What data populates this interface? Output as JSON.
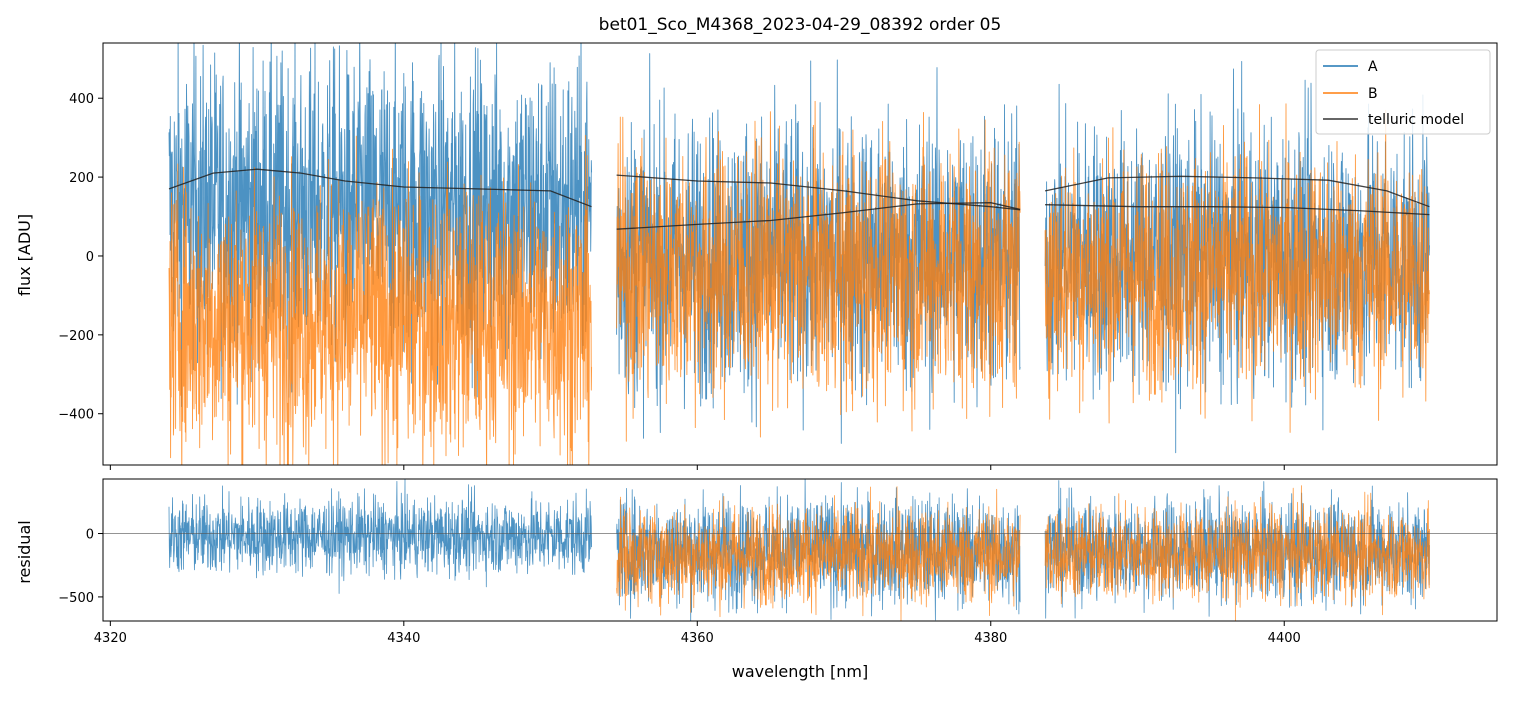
{
  "chart_data": {
    "type": "line",
    "title": "bet01_Sco_M4368_2023-04-29_08392  order 05",
    "xlabel": "wavelength [nm]",
    "colors": {
      "A": "#1f77b4",
      "B": "#ff7f0e",
      "telluric": "#000000"
    },
    "xlim": [
      4319.5,
      4414.5
    ],
    "xticks": [
      4320,
      4340,
      4360,
      4380,
      4400
    ],
    "legend": {
      "position": "top-right",
      "entries": [
        "A",
        "B",
        "telluric model"
      ]
    },
    "segments": [
      {
        "x_start": 4324.0,
        "x_end": 4352.8
      },
      {
        "x_start": 4354.5,
        "x_end": 4382.0
      },
      {
        "x_start": 4383.7,
        "x_end": 4409.9
      }
    ],
    "panels": [
      {
        "name": "flux",
        "ylabel": "flux [ADU]",
        "ylim": [
          -530,
          540
        ],
        "yticks": [
          -400,
          -200,
          0,
          200,
          400
        ],
        "series": [
          {
            "name": "A",
            "segment_means": [
              120,
              0,
              0
            ],
            "spread": [
              190,
              175,
              165
            ]
          },
          {
            "name": "B",
            "segment_means": [
              -160,
              -40,
              -40
            ],
            "spread": [
              170,
              160,
              150
            ]
          }
        ],
        "telluric_model": [
          {
            "segment": 0,
            "x": [
              4324,
              4327,
              4330,
              4333,
              4336,
              4340,
              4345,
              4350,
              4352.8
            ],
            "y": [
              170,
              210,
              220,
              210,
              190,
              175,
              170,
              165,
              125
            ]
          },
          {
            "segment": 1,
            "x": [
              4354.5,
              4360,
              4365,
              4370,
              4375,
              4380,
              4382
            ],
            "y": [
              205,
              190,
              185,
              165,
              140,
              125,
              117
            ]
          },
          {
            "segment": 1,
            "x": [
              4354.5,
              4360,
              4365,
              4370,
              4375,
              4380,
              4382
            ],
            "y": [
              68,
              80,
              90,
              110,
              132,
              135,
              118
            ]
          },
          {
            "segment": 2,
            "x": [
              4383.7,
              4388,
              4393,
              4398,
              4403,
              4407,
              4409.9
            ],
            "y": [
              165,
              198,
              202,
              198,
              192,
              165,
              125
            ]
          },
          {
            "segment": 2,
            "x": [
              4383.7,
              4390,
              4395,
              4400,
              4405,
              4409.9
            ],
            "y": [
              130,
              125,
              125,
              123,
              115,
              105
            ]
          }
        ]
      },
      {
        "name": "residual",
        "ylabel": "residual",
        "ylim": [
          -690,
          430
        ],
        "yticks": [
          -500,
          0
        ],
        "zero_line": true,
        "series": [
          {
            "name": "A",
            "segment_means": [
              -20,
              -130,
              -130
            ],
            "spread": [
              150,
              210,
              200
            ],
            "segments_present": [
              0,
              1,
              2
            ]
          },
          {
            "name": "B",
            "segment_means": [
              null,
              -170,
              -160
            ],
            "spread": [
              null,
              190,
              180
            ],
            "segments_present": [
              1,
              2
            ]
          }
        ]
      }
    ]
  }
}
